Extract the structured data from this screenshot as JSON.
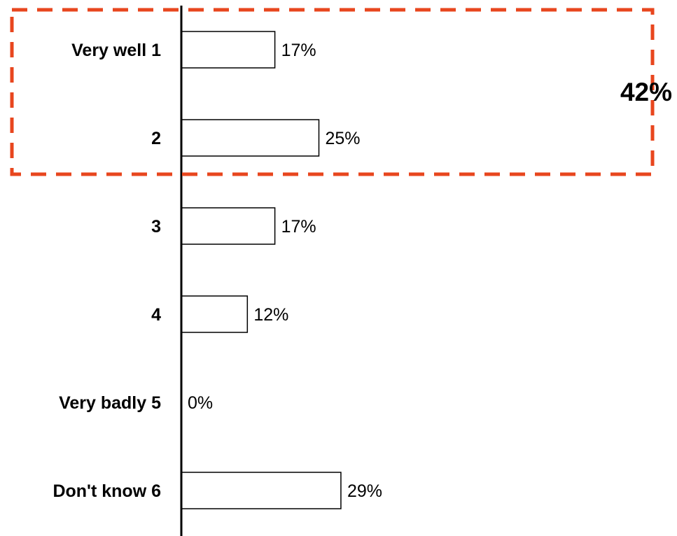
{
  "chart_data": {
    "type": "bar",
    "orientation": "horizontal",
    "categories": [
      "Very well  1",
      "2",
      "3",
      "4",
      "Very badly  5",
      "Don't know  6"
    ],
    "values": [
      17,
      25,
      17,
      12,
      0,
      29
    ],
    "value_labels": [
      "17%",
      "25%",
      "17%",
      "12%",
      "0%",
      "29%"
    ],
    "unit": "%",
    "xlim": [
      0,
      100
    ],
    "grid": false,
    "legend": "none",
    "highlight": {
      "categories": [
        "Very well  1",
        "2"
      ],
      "label": "42%",
      "style": "dashed-box",
      "color": "#e8461e"
    },
    "colors": {
      "bar_fill": "#ffffff",
      "bar_stroke": "#000000",
      "axis": "#000000",
      "highlight": "#e8461e"
    }
  }
}
